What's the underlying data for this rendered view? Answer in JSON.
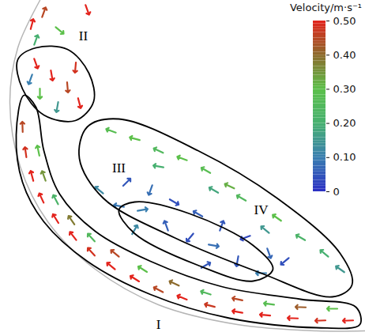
{
  "chart_data": {
    "type": "vector",
    "xlim": [
      0,
      462
    ],
    "ylim": [
      425,
      0
    ],
    "tick_labels": false,
    "wall": [
      [
        50,
        0
      ],
      [
        22,
        60
      ],
      [
        12,
        130
      ],
      [
        25,
        210
      ],
      [
        60,
        280
      ],
      [
        120,
        340
      ],
      [
        200,
        385
      ],
      [
        300,
        410
      ],
      [
        400,
        418
      ],
      [
        462,
        418
      ]
    ],
    "vectors": {
      "x": [
        440,
        405,
        370,
        335,
        300,
        265,
        230,
        200,
        170,
        140,
        115,
        92,
        70,
        52,
        40,
        32,
        28,
        420,
        380,
        340,
        300,
        260,
        220,
        180,
        145,
        115,
        90,
        70,
        55,
        48,
        45,
        65,
        85,
        100,
        50,
        72,
        95,
        38,
        40,
        55,
        45,
        110,
        75,
        140,
        170,
        200,
        230,
        260,
        290,
        305,
        350,
        380,
        410,
        430,
        200,
        270,
        335,
        160,
        190,
        220,
        250,
        280,
        310,
        340,
        180,
        210,
        240,
        270,
        300,
        150,
        170,
        330,
        125,
        260,
        360
      ],
      "y": [
        405,
        405,
        402,
        398,
        394,
        386,
        376,
        366,
        352,
        336,
        318,
        298,
        276,
        250,
        222,
        192,
        160,
        390,
        388,
        384,
        378,
        370,
        358,
        340,
        320,
        300,
        278,
        252,
        222,
        190,
        80,
        95,
        110,
        130,
        118,
        135,
        85,
        100,
        30,
        15,
        50,
        12,
        38,
        165,
        175,
        190,
        200,
        215,
        235,
        250,
        275,
        300,
        320,
        340,
        210,
        240,
        290,
        230,
        240,
        255,
        270,
        285,
        300,
        320,
        265,
        285,
        300,
        310,
        330,
        260,
        290,
        345,
        240,
        335,
        330
      ],
      "angle": [
        268,
        268,
        272,
        275,
        280,
        285,
        292,
        298,
        302,
        310,
        318,
        322,
        328,
        335,
        345,
        352,
        358,
        270,
        272,
        278,
        282,
        288,
        295,
        302,
        310,
        318,
        325,
        332,
        340,
        348,
        160,
        170,
        175,
        165,
        180,
        190,
        185,
        200,
        15,
        20,
        20,
        160,
        130,
        290,
        285,
        295,
        290,
        300,
        295,
        300,
        305,
        300,
        310,
        305,
        280,
        300,
        310,
        45,
        200,
        120,
        300,
        20,
        250,
        160,
        80,
        340,
        220,
        100,
        190,
        280,
        30,
        270,
        310,
        60,
        230
      ],
      "speed": [
        0.5,
        0.48,
        0.5,
        0.5,
        0.5,
        0.47,
        0.5,
        0.45,
        0.5,
        0.5,
        0.48,
        0.5,
        0.5,
        0.5,
        0.5,
        0.48,
        0.45,
        0.3,
        0.42,
        0.28,
        0.45,
        0.25,
        0.4,
        0.3,
        0.45,
        0.25,
        0.38,
        0.22,
        0.35,
        0.3,
        0.5,
        0.5,
        0.45,
        0.5,
        0.3,
        0.15,
        0.48,
        0.1,
        0.5,
        0.45,
        0.2,
        0.5,
        0.3,
        0.28,
        0.3,
        0.25,
        0.3,
        0.28,
        0.32,
        0.25,
        0.3,
        0.22,
        0.2,
        0.15,
        0.2,
        0.18,
        0.15,
        0.05,
        0.08,
        0.04,
        0.06,
        0.05,
        0.03,
        0.07,
        0.1,
        0.06,
        0.04,
        0.08,
        0.05,
        0.09,
        0.12,
        0.1,
        0.12,
        0.05,
        0.04
      ]
    },
    "regions": [
      {
        "label": "I",
        "x": 200,
        "y": 410,
        "outline": [
          [
            30,
            120
          ],
          [
            20,
            170
          ],
          [
            28,
            230
          ],
          [
            55,
            280
          ],
          [
            110,
            330
          ],
          [
            190,
            372
          ],
          [
            290,
            402
          ],
          [
            400,
            414
          ],
          [
            455,
            410
          ],
          [
            450,
            388
          ],
          [
            380,
            378
          ],
          [
            280,
            362
          ],
          [
            190,
            330
          ],
          [
            120,
            292
          ],
          [
            75,
            245
          ],
          [
            55,
            190
          ],
          [
            45,
            135
          ]
        ]
      },
      {
        "label": "II",
        "x": 105,
        "y": 45,
        "outline": [
          [
            22,
            75
          ],
          [
            45,
            60
          ],
          [
            85,
            62
          ],
          [
            112,
            92
          ],
          [
            118,
            128
          ],
          [
            95,
            152
          ],
          [
            55,
            145
          ],
          [
            28,
            112
          ]
        ]
      },
      {
        "label": "III",
        "x": 150,
        "y": 212,
        "outline": [
          [
            150,
            265
          ],
          [
            170,
            255
          ],
          [
            240,
            270
          ],
          [
            320,
            310
          ],
          [
            345,
            340
          ],
          [
            320,
            355
          ],
          [
            250,
            335
          ],
          [
            170,
            295
          ]
        ]
      },
      {
        "label": "IV",
        "x": 330,
        "y": 265,
        "outline": [
          [
            110,
            160
          ],
          [
            150,
            150
          ],
          [
            250,
            190
          ],
          [
            350,
            250
          ],
          [
            430,
            320
          ],
          [
            445,
            360
          ],
          [
            420,
            375
          ],
          [
            330,
            345
          ],
          [
            220,
            300
          ],
          [
            130,
            250
          ],
          [
            100,
            200
          ]
        ]
      }
    ],
    "colorbar": {
      "title": "Velocity/m·s⁻¹",
      "range": [
        0,
        0.5
      ],
      "ticks": [
        0,
        {
          "value": 0.1,
          "label": "0.10"
        },
        {
          "value": 0.2,
          "label": "0.20"
        },
        {
          "value": 0.3,
          "label": "0.30"
        },
        {
          "value": 0.4,
          "label": "0.40"
        },
        {
          "value": 0.5,
          "label": "0.50"
        }
      ],
      "colors": [
        "#2b2fc4",
        "#3a7fb0",
        "#47b070",
        "#5cc04a",
        "#8c6a2c",
        "#e3231c"
      ]
    }
  }
}
